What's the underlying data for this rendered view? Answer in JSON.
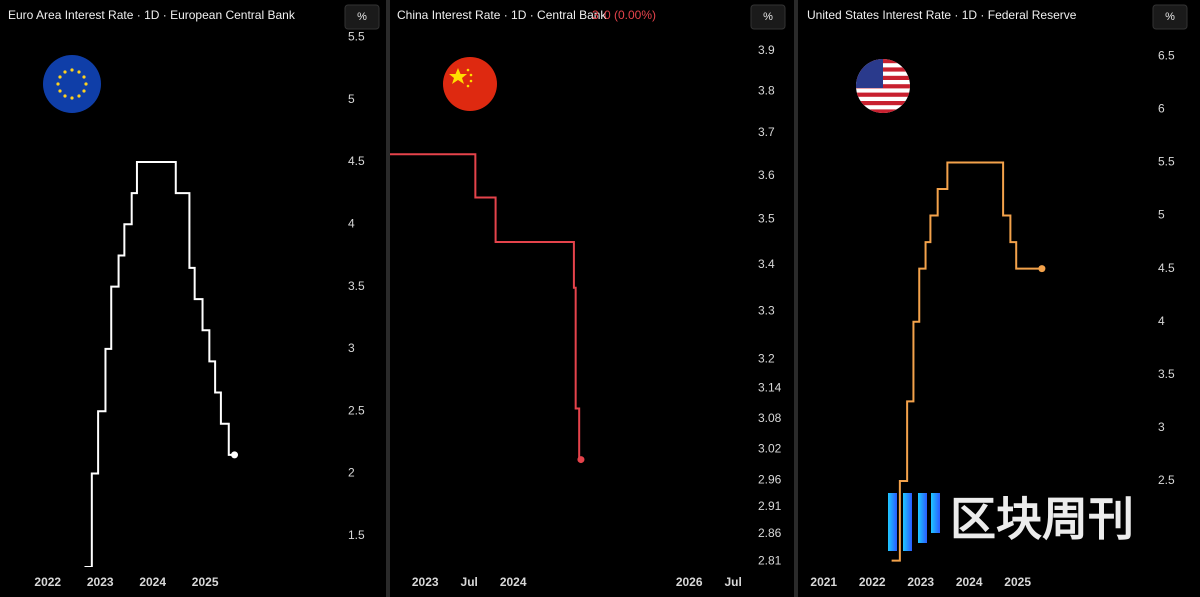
{
  "chart_data": [
    {
      "type": "line",
      "title": "Euro Area Interest Rate · 1D · European Central Bank",
      "unit": "%",
      "color": "#ffffff",
      "step": true,
      "log_y": false,
      "x": [
        2022.7,
        2022.84,
        2022.96,
        2023.1,
        2023.21,
        2023.35,
        2023.46,
        2023.6,
        2023.7,
        2024.44,
        2024.7,
        2024.8,
        2024.95,
        2025.08,
        2025.19,
        2025.3,
        2025.45,
        2025.56
      ],
      "values": [
        1.25,
        2.0,
        2.5,
        3.0,
        3.5,
        3.75,
        4.0,
        4.25,
        4.5,
        4.25,
        3.65,
        3.4,
        3.15,
        2.9,
        2.65,
        2.4,
        2.15,
        2.15
      ],
      "xlim": [
        2021.09,
        2027.57
      ],
      "ylim": [
        1.25,
        5.8
      ],
      "xticks": [
        2022,
        2023,
        2024,
        2025
      ],
      "yticks": [
        1.5,
        2,
        2.5,
        3,
        3.5,
        4,
        4.5,
        5,
        5.5
      ]
    },
    {
      "type": "line",
      "title": "China Interest Rate · 1D · Central Bank",
      "last_value": 3,
      "change_label": "0 (0.00%)",
      "unit": "%",
      "color": "#e5434b",
      "step": true,
      "log_y": true,
      "x": [
        2022.6,
        2023.57,
        2023.8,
        2024.69,
        2024.71,
        2024.75,
        2024.77
      ],
      "values": [
        3.65,
        3.55,
        3.45,
        3.35,
        3.1,
        3.0,
        3.0
      ],
      "xlim": [
        2022.6,
        2027.18
      ],
      "ylim": [
        2.8,
        4.03
      ],
      "xticks": [
        2023,
        {
          "value": 2023.5,
          "label": "Jul"
        },
        2024,
        2026,
        {
          "value": 2026.5,
          "label": "Jul"
        }
      ],
      "yticks": [
        2.81,
        2.86,
        2.91,
        2.96,
        3.02,
        3.08,
        3.14,
        3.2,
        3.3,
        3.4,
        3.5,
        3.6,
        3.7,
        3.8,
        3.9
      ]
    },
    {
      "type": "line",
      "title": "United States Interest Rate · 1D · Federal Reserve",
      "unit": "%",
      "color": "#f3a24b",
      "step": true,
      "log_y": false,
      "x": [
        2022.4,
        2022.57,
        2022.72,
        2022.85,
        2022.97,
        2023.1,
        2023.2,
        2023.35,
        2023.55,
        2024.7,
        2024.85,
        2024.97,
        2025.5
      ],
      "values": [
        1.75,
        2.5,
        3.25,
        4.0,
        4.5,
        4.75,
        5.0,
        5.25,
        5.5,
        5.0,
        4.75,
        4.5,
        4.5
      ],
      "xlim": [
        2020.51,
        2027.73
      ],
      "ylim": [
        1.69,
        7.03
      ],
      "xticks": [
        2021,
        2022,
        2023,
        2024,
        2025
      ],
      "yticks": [
        2.5,
        3,
        3.5,
        4,
        4.5,
        5,
        5.5,
        6,
        6.5
      ]
    }
  ],
  "watermark": "区块周刊"
}
